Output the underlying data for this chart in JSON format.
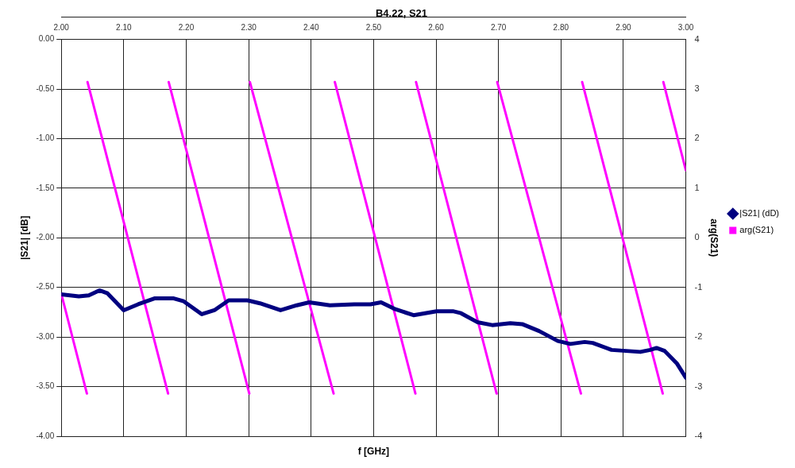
{
  "chart_data": {
    "type": "line",
    "title": "B4.22, S21",
    "xlabel": "f [GHz]",
    "ylabel": "|S21| [dB]",
    "y2label": "arg(S21)",
    "xlim": [
      2,
      3
    ],
    "xticks": [
      {
        "value": 2,
        "label": "2.00"
      },
      {
        "value": 2.1,
        "label": "2.10"
      },
      {
        "value": 2.2,
        "label": "2.20"
      },
      {
        "value": 2.3,
        "label": "2.30"
      },
      {
        "value": 2.4,
        "label": "2.40"
      },
      {
        "value": 2.5,
        "label": "2.50"
      },
      {
        "value": 2.6,
        "label": "2.60"
      },
      {
        "value": 2.7,
        "label": "2.70"
      },
      {
        "value": 2.8,
        "label": "2.80"
      },
      {
        "value": 2.9,
        "label": "2.90"
      },
      {
        "value": 3,
        "label": "3.00"
      }
    ],
    "ylim": [
      -4,
      0
    ],
    "yticks": [
      {
        "value": -4,
        "label": "-4.00"
      },
      {
        "value": -3.5,
        "label": "-3.50"
      },
      {
        "value": -3,
        "label": "-3.00"
      },
      {
        "value": -2.5,
        "label": "-2.50"
      },
      {
        "value": -2,
        "label": "-2.00"
      },
      {
        "value": -1.5,
        "label": "-1.50"
      },
      {
        "value": -1,
        "label": "-1.00"
      },
      {
        "value": -0.5,
        "label": "-0.50"
      },
      {
        "value": 0,
        "label": "0.00"
      }
    ],
    "y2lim": [
      -4,
      4
    ],
    "y2ticks": [
      -4,
      -3,
      -2,
      -1,
      0,
      1,
      2,
      3,
      4
    ],
    "grid": true,
    "legend": "right",
    "marker": "none",
    "line_style": "solid",
    "series": [
      {
        "name": "|S21| (dD)",
        "color": "#000080",
        "x": [
          2.0,
          2.028,
          2.044,
          2.061,
          2.074,
          2.1,
          2.123,
          2.15,
          2.179,
          2.196,
          2.225,
          2.245,
          2.268,
          2.298,
          2.318,
          2.351,
          2.377,
          2.397,
          2.43,
          2.469,
          2.495,
          2.512,
          2.535,
          2.564,
          2.601,
          2.627,
          2.64,
          2.666,
          2.69,
          2.719,
          2.738,
          2.765,
          2.795,
          2.815,
          2.838,
          2.851,
          2.881,
          2.904,
          2.927,
          2.943,
          2.953,
          2.966,
          2.986,
          3.0
        ],
        "values": [
          -2.57,
          -2.59,
          -2.58,
          -2.53,
          -2.56,
          -2.73,
          -2.67,
          -2.61,
          -2.61,
          -2.64,
          -2.77,
          -2.73,
          -2.63,
          -2.63,
          -2.66,
          -2.73,
          -2.68,
          -2.65,
          -2.68,
          -2.67,
          -2.67,
          -2.65,
          -2.72,
          -2.78,
          -2.74,
          -2.74,
          -2.76,
          -2.85,
          -2.88,
          -2.86,
          -2.87,
          -2.94,
          -3.04,
          -3.07,
          -3.05,
          -3.06,
          -3.13,
          -3.14,
          -3.15,
          -3.13,
          -3.11,
          -3.14,
          -3.27,
          -3.41
        ]
      },
      {
        "name": "arg(S21)",
        "color": "#ff00ff",
        "axis": "y2",
        "x": [
          2.0,
          2.041,
          2.0415,
          2.042,
          2.171,
          2.1715,
          2.172,
          2.301,
          2.3015,
          2.302,
          2.436,
          2.437,
          2.438,
          2.567,
          2.5675,
          2.568,
          2.697,
          2.6975,
          2.698,
          2.832,
          2.833,
          2.834,
          2.963,
          2.9635,
          2.964,
          3.0
        ],
        "values": [
          -1.13,
          -3.14,
          null,
          3.14,
          -3.14,
          null,
          3.14,
          -3.14,
          null,
          3.14,
          -3.14,
          null,
          3.14,
          -3.14,
          null,
          3.14,
          -3.14,
          null,
          3.14,
          -3.14,
          null,
          3.14,
          -3.14,
          null,
          3.14,
          1.36
        ]
      }
    ]
  }
}
